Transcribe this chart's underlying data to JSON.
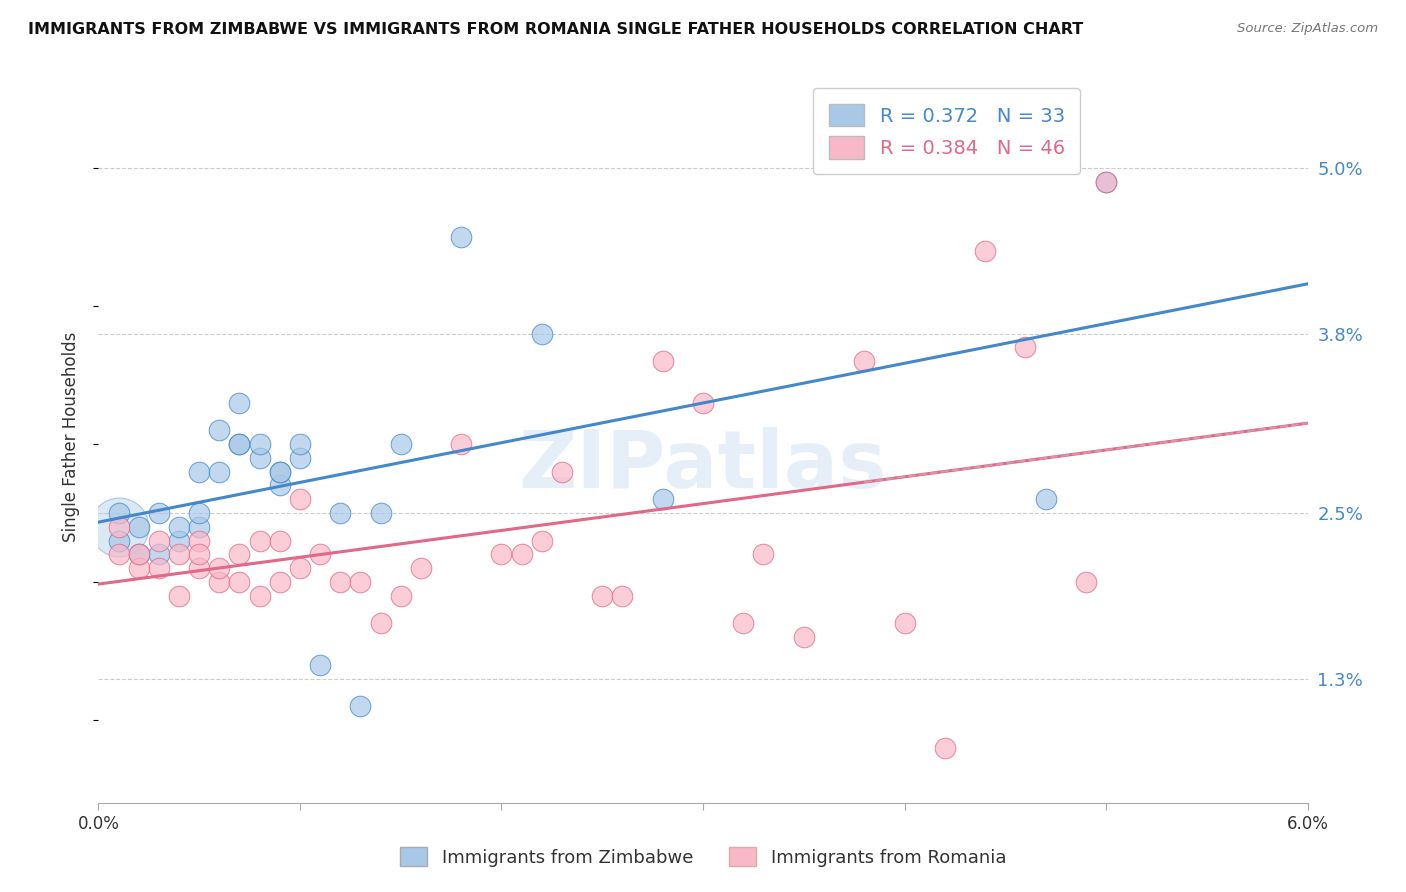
{
  "title": "IMMIGRANTS FROM ZIMBABWE VS IMMIGRANTS FROM ROMANIA SINGLE FATHER HOUSEHOLDS CORRELATION CHART",
  "source": "Source: ZipAtlas.com",
  "ylabel": "Single Father Households",
  "ytick_labels": [
    "5.0%",
    "3.8%",
    "2.5%",
    "1.3%"
  ],
  "ytick_values": [
    0.05,
    0.038,
    0.025,
    0.013
  ],
  "xmin": 0.0,
  "xmax": 0.06,
  "ymin": 0.004,
  "ymax": 0.057,
  "color_zimbabwe": "#a8c8e8",
  "color_romania": "#f8b8c8",
  "color_line_zimbabwe": "#4488cc",
  "color_line_romania": "#e06888",
  "watermark": "ZIPatlas",
  "zimbabwe_x": [
    0.001,
    0.002,
    0.002,
    0.003,
    0.003,
    0.004,
    0.004,
    0.005,
    0.005,
    0.005,
    0.006,
    0.006,
    0.007,
    0.007,
    0.007,
    0.008,
    0.008,
    0.009,
    0.009,
    0.009,
    0.01,
    0.01,
    0.011,
    0.012,
    0.013,
    0.014,
    0.015,
    0.018,
    0.022,
    0.028,
    0.047,
    0.05,
    0.001
  ],
  "zimbabwe_y": [
    0.025,
    0.022,
    0.024,
    0.022,
    0.025,
    0.023,
    0.024,
    0.028,
    0.024,
    0.025,
    0.028,
    0.031,
    0.03,
    0.03,
    0.033,
    0.029,
    0.03,
    0.027,
    0.028,
    0.028,
    0.029,
    0.03,
    0.014,
    0.025,
    0.011,
    0.025,
    0.03,
    0.045,
    0.038,
    0.026,
    0.026,
    0.049,
    0.023
  ],
  "romania_x": [
    0.001,
    0.001,
    0.002,
    0.002,
    0.003,
    0.003,
    0.004,
    0.004,
    0.005,
    0.005,
    0.005,
    0.006,
    0.006,
    0.007,
    0.007,
    0.008,
    0.008,
    0.009,
    0.009,
    0.01,
    0.01,
    0.011,
    0.012,
    0.013,
    0.014,
    0.015,
    0.016,
    0.018,
    0.02,
    0.021,
    0.022,
    0.023,
    0.025,
    0.026,
    0.028,
    0.03,
    0.032,
    0.035,
    0.038,
    0.04,
    0.042,
    0.044,
    0.046,
    0.049,
    0.05,
    0.033
  ],
  "romania_y": [
    0.022,
    0.024,
    0.021,
    0.022,
    0.021,
    0.023,
    0.019,
    0.022,
    0.023,
    0.021,
    0.022,
    0.02,
    0.021,
    0.022,
    0.02,
    0.023,
    0.019,
    0.02,
    0.023,
    0.021,
    0.026,
    0.022,
    0.02,
    0.02,
    0.017,
    0.019,
    0.021,
    0.03,
    0.022,
    0.022,
    0.023,
    0.028,
    0.019,
    0.019,
    0.036,
    0.033,
    0.017,
    0.016,
    0.036,
    0.017,
    0.008,
    0.044,
    0.037,
    0.02,
    0.049,
    0.022
  ]
}
